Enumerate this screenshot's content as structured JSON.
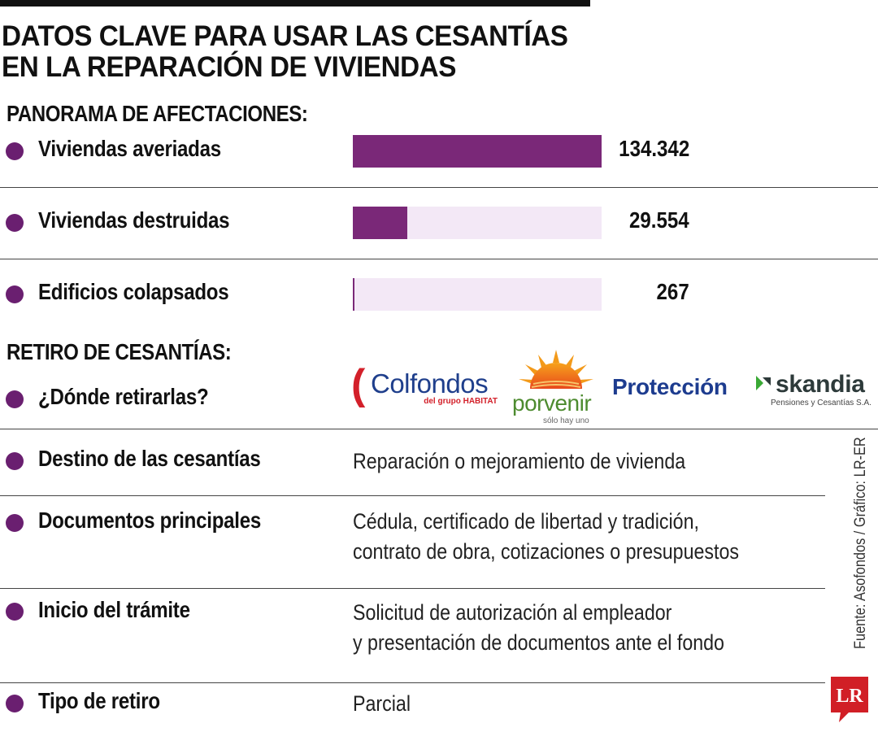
{
  "title": {
    "line1": "DATOS CLAVE PARA USAR LAS CESANTÍAS",
    "line2": "EN LA REPARACIÓN DE VIVIENDAS"
  },
  "sections": {
    "panorama": "PANORAMA DE AFECTACIONES:",
    "retiro": "RETIRO DE CESANTÍAS:"
  },
  "colors": {
    "bar_fill": "#7a2878",
    "bar_track": "#f3e8f6",
    "bullet": "#6a1f70"
  },
  "chart_data": {
    "type": "bar",
    "orientation": "horizontal",
    "categories": [
      "Viviendas averiadas",
      "Viviendas destruidas",
      "Edificios colapsados"
    ],
    "values": [
      134342,
      29554,
      267
    ],
    "value_labels": [
      "134.342",
      "29.554",
      "267"
    ],
    "xlim": [
      0,
      134342
    ]
  },
  "retiro": {
    "donde_label": "¿Dónde retirarlas?",
    "logos": [
      {
        "name": "Colfondos",
        "sub": "del grupo HABITAT",
        "icon": "colfondos-logo"
      },
      {
        "name": "porvenir",
        "sub": "sólo hay uno",
        "icon": "porvenir-sun-logo"
      },
      {
        "name": "Protección",
        "icon": "proteccion-logo"
      },
      {
        "name": "skandia",
        "sub": "Pensiones y Cesantías S.A.",
        "icon": "skandia-logo"
      }
    ]
  },
  "details": [
    {
      "label": "Destino de las cesantías",
      "lines": [
        "Reparación o mejoramiento de vivienda"
      ]
    },
    {
      "label": "Documentos principales",
      "lines": [
        "Cédula, certificado de libertad y tradición,",
        "contrato de obra, cotizaciones o presupuestos"
      ]
    },
    {
      "label": "Inicio del trámite",
      "lines": [
        "Solicitud de autorización al empleador",
        "y presentación de documentos ante el fondo"
      ]
    },
    {
      "label": "Tipo de retiro",
      "lines": [
        "Parcial"
      ]
    }
  ],
  "source": "Fuente: Asofondos / Gráfico: LR-ER",
  "brand": "LR"
}
